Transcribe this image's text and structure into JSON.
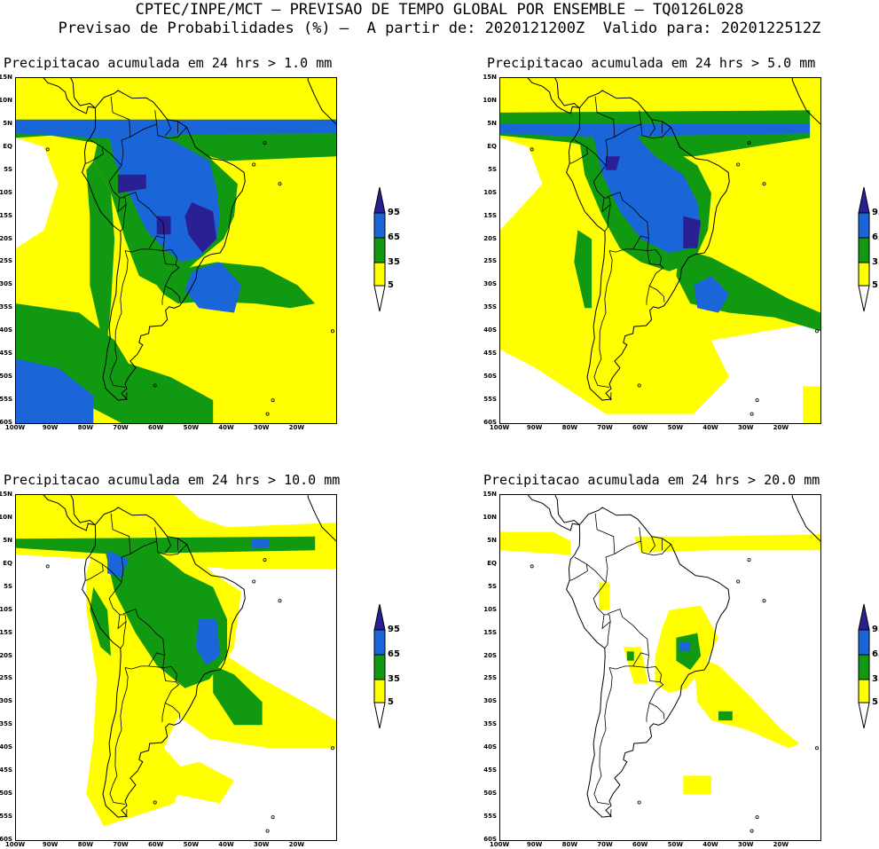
{
  "header": {
    "line1": "CPTEC/INPE/MCT – PREVISAO DE TEMPO GLOBAL POR ENSEMBLE – TQ0126L028",
    "line2": "Previsao de Probabilidades (%) –  A partir de: 2020121200Z  Valido para: 2020122512Z"
  },
  "colors": {
    "c5": "#ffff00",
    "c35": "#119911",
    "c65": "#1a66d8",
    "c95": "#2b1f94",
    "coast": "#000000"
  },
  "axes": {
    "lat_labels": [
      "15N",
      "10N",
      "5N",
      "EQ",
      "5S",
      "10S",
      "15S",
      "20S",
      "25S",
      "30S",
      "35S",
      "40S",
      "45S",
      "50S",
      "55S",
      "60S"
    ],
    "lon_labels": [
      "100W",
      "90W",
      "80W",
      "70W",
      "60W",
      "50W",
      "40W",
      "30W",
      "20W"
    ]
  },
  "colorbar": {
    "labels": [
      "95",
      "65",
      "35",
      "5"
    ]
  },
  "panels": [
    {
      "title": "Precipitacao acumulada em 24 hrs > 1.0 mm"
    },
    {
      "title": "Precipitacao acumulada em 24 hrs > 5.0 mm"
    },
    {
      "title": "Precipitacao acumulada em 24 hrs > 10.0 mm"
    },
    {
      "title": "Precipitacao acumulada em 24 hrs > 20.0 mm"
    }
  ]
}
